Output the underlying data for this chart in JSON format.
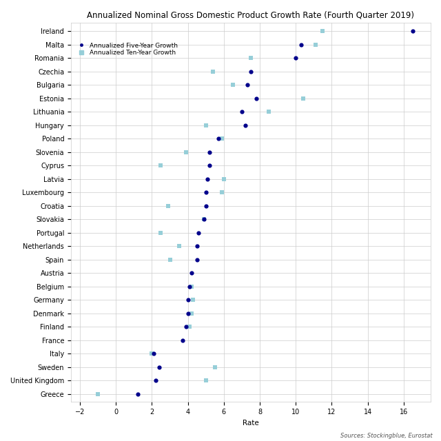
{
  "title": "Annualized Nominal Gross Domestic Product Growth Rate (Fourth Quarter 2019)",
  "xlabel": "Rate",
  "source": "Sources: Stockingblue, Eurostat",
  "countries": [
    "Ireland",
    "Malta",
    "Romania",
    "Czechia",
    "Bulgaria",
    "Estonia",
    "Lithuania",
    "Hungary",
    "Poland",
    "Slovenia",
    "Cyprus",
    "Latvia",
    "Luxembourg",
    "Croatia",
    "Slovakia",
    "Portugal",
    "Netherlands",
    "Spain",
    "Austria",
    "Belgium",
    "Germany",
    "Denmark",
    "Finland",
    "France",
    "Italy",
    "Sweden",
    "United Kingdom",
    "Greece"
  ],
  "five_year": [
    16.5,
    10.3,
    10.0,
    7.5,
    7.3,
    7.8,
    7.0,
    7.2,
    5.7,
    5.2,
    5.2,
    5.1,
    5.0,
    5.0,
    4.9,
    4.6,
    4.5,
    4.5,
    4.2,
    4.1,
    4.0,
    4.0,
    3.9,
    3.7,
    2.1,
    2.4,
    2.2,
    1.2
  ],
  "ten_year": [
    11.5,
    11.1,
    7.5,
    5.4,
    6.5,
    10.4,
    8.5,
    5.0,
    5.9,
    3.9,
    2.5,
    6.0,
    5.9,
    2.9,
    4.9,
    2.5,
    3.5,
    3.0,
    null,
    4.2,
    4.3,
    4.2,
    4.1,
    null,
    2.0,
    5.5,
    5.0,
    -1.0
  ],
  "dot_color": "#00008B",
  "square_color": "#96CED8",
  "dot_size": 12,
  "square_size": 25,
  "xlim": [
    -2.5,
    17.5
  ],
  "xticks": [
    -2,
    0,
    2,
    4,
    6,
    8,
    10,
    12,
    14,
    16
  ],
  "bg_color": "#FFFFFF",
  "grid_color": "#CCCCCC",
  "title_fontsize": 8.5,
  "axis_fontsize": 7.5,
  "tick_fontsize": 7,
  "legend_fontsize": 6.5,
  "source_fontsize": 6
}
